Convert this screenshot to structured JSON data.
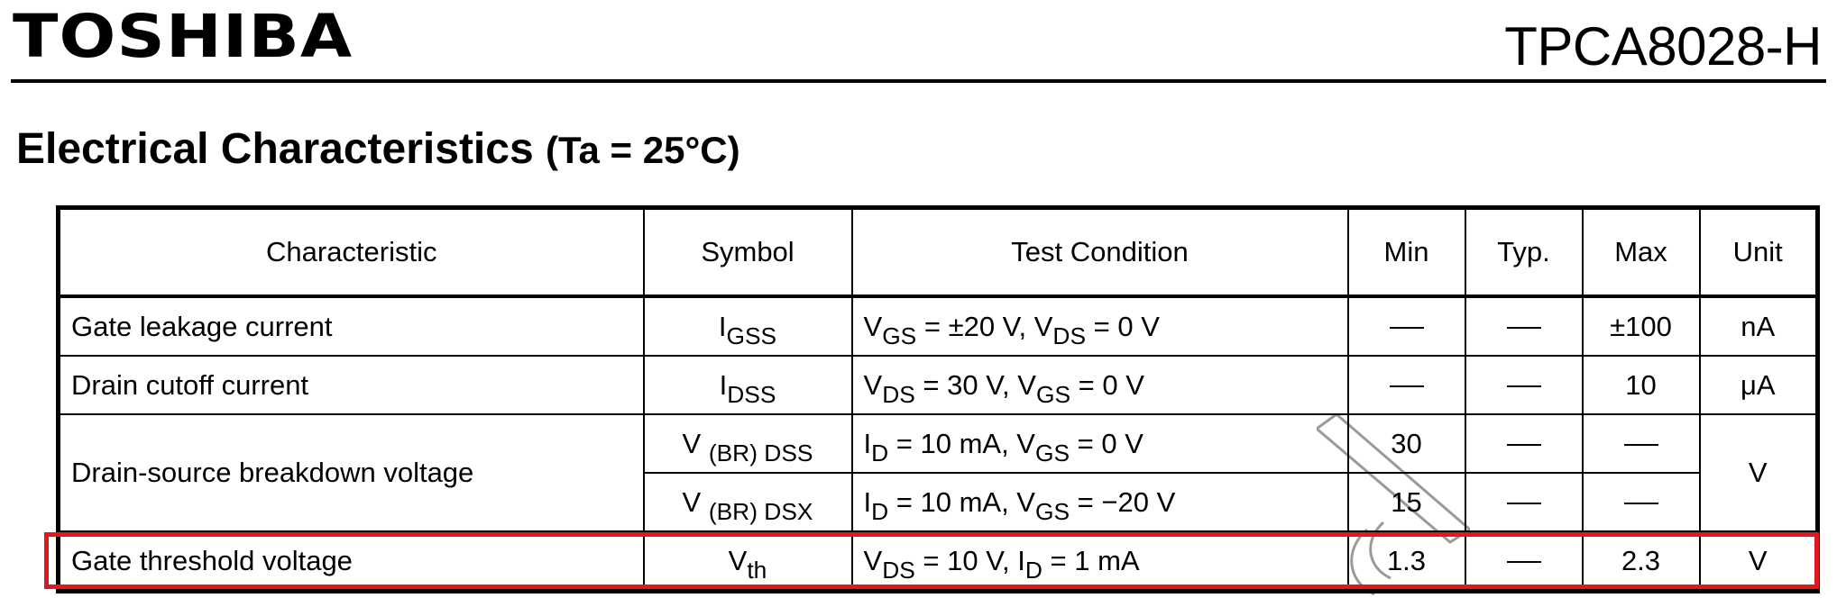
{
  "header": {
    "brand": "TOSHIBA",
    "part_number": "TPCA8028-H"
  },
  "section": {
    "title": "Electrical Characteristics",
    "condition": "(Ta = 25°C)"
  },
  "table": {
    "columns": [
      "Characteristic",
      "Symbol",
      "Test Condition",
      "Min",
      "Typ.",
      "Max",
      "Unit"
    ],
    "rows": [
      {
        "characteristic": "Gate leakage current",
        "symbol": {
          "main": "I",
          "sub": "GSS"
        },
        "condition": [
          "V",
          "GS",
          " = ±20 V, V",
          "DS",
          " = 0 V"
        ],
        "min": "—",
        "typ": "—",
        "max": "±100",
        "unit": "nA"
      },
      {
        "characteristic": "Drain cutoff current",
        "symbol": {
          "main": "I",
          "sub": "DSS"
        },
        "condition": [
          "V",
          "DS",
          " = 30 V, V",
          "GS",
          " = 0 V"
        ],
        "min": "—",
        "typ": "—",
        "max": "10",
        "unit": "μA"
      },
      {
        "characteristic": "Drain-source breakdown voltage",
        "symbol": {
          "main": "V ",
          "sub": "(BR) DSS"
        },
        "condition": [
          "I",
          "D",
          " = 10 mA, V",
          "GS",
          " = 0 V"
        ],
        "min": "30",
        "typ": "—",
        "max": "—",
        "unit": "V"
      },
      {
        "symbol": {
          "main": "V ",
          "sub": "(BR) DSX"
        },
        "condition": [
          "I",
          "D",
          " = 10 mA, V",
          "GS",
          " = −20 V"
        ],
        "min": "15",
        "typ": "—",
        "max": "—"
      },
      {
        "characteristic": "Gate threshold voltage",
        "symbol": {
          "main": "V",
          "sub": "th"
        },
        "condition": [
          "V",
          "DS",
          " = 10 V, I",
          "D",
          " = 1 mA"
        ],
        "min": "1.3",
        "typ": "—",
        "max": "2.3",
        "unit": "V"
      }
    ]
  },
  "colors": {
    "highlight": "#e0181f",
    "watermark": "#9a9a9a"
  }
}
